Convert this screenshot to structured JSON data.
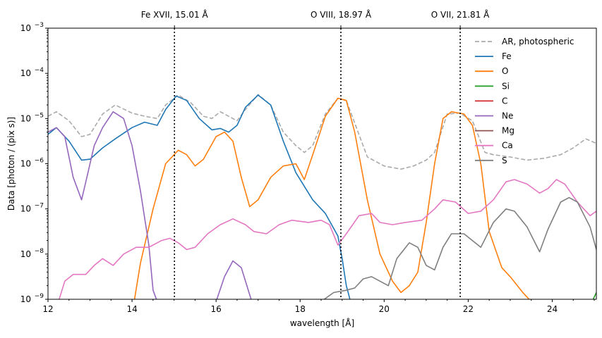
{
  "chart_data": {
    "type": "line",
    "xlabel": "wavelength [Å]",
    "ylabel": "Data [photon / (pix s)]",
    "xlim": [
      12,
      25.05
    ],
    "ylim_log10": [
      -9,
      -3
    ],
    "y_scale": "log",
    "x_ticks": [
      12,
      14,
      16,
      18,
      20,
      22,
      24
    ],
    "y_ticks": [
      {
        "exp": -9,
        "label": "10",
        "sup": "−9"
      },
      {
        "exp": -8,
        "label": "10",
        "sup": "−8"
      },
      {
        "exp": -7,
        "label": "10",
        "sup": "−7"
      },
      {
        "exp": -6,
        "label": "10",
        "sup": "−6"
      },
      {
        "exp": -5,
        "label": "10",
        "sup": "−5"
      },
      {
        "exp": -4,
        "label": "10",
        "sup": "−4"
      },
      {
        "exp": -3,
        "label": "10",
        "sup": "−3"
      }
    ],
    "reference_lines": [
      {
        "x": 15.01,
        "label": "Fe XVII, 15.01 Å"
      },
      {
        "x": 18.97,
        "label": "O VIII, 18.97 Å"
      },
      {
        "x": 21.81,
        "label": "O VII, 21.81 Å"
      }
    ],
    "legend_position": "upper-right",
    "series": [
      {
        "name": "AR, photospheric",
        "color": "#aaaaaa",
        "dash": true,
        "points": [
          [
            12,
            -4.95
          ],
          [
            12.2,
            -4.85
          ],
          [
            12.5,
            -5.05
          ],
          [
            12.8,
            -5.4
          ],
          [
            13,
            -5.35
          ],
          [
            13.3,
            -4.9
          ],
          [
            13.6,
            -4.7
          ],
          [
            14,
            -4.88
          ],
          [
            14.3,
            -4.95
          ],
          [
            14.6,
            -5.0
          ],
          [
            14.8,
            -4.7
          ],
          [
            15.1,
            -4.48
          ],
          [
            15.4,
            -4.65
          ],
          [
            15.7,
            -4.95
          ],
          [
            15.9,
            -5.0
          ],
          [
            16.1,
            -4.85
          ],
          [
            16.3,
            -4.95
          ],
          [
            16.5,
            -5.05
          ],
          [
            16.7,
            -4.8
          ],
          [
            17.0,
            -4.47
          ],
          [
            17.3,
            -4.7
          ],
          [
            17.6,
            -5.3
          ],
          [
            17.9,
            -5.6
          ],
          [
            18.1,
            -5.75
          ],
          [
            18.3,
            -5.6
          ],
          [
            18.6,
            -4.9
          ],
          [
            18.9,
            -4.55
          ],
          [
            19.1,
            -4.6
          ],
          [
            19.3,
            -5.1
          ],
          [
            19.6,
            -5.85
          ],
          [
            20.0,
            -6.05
          ],
          [
            20.4,
            -6.12
          ],
          [
            20.7,
            -6.05
          ],
          [
            21.0,
            -5.92
          ],
          [
            21.2,
            -5.75
          ],
          [
            21.5,
            -4.9
          ],
          [
            21.8,
            -4.88
          ],
          [
            22.1,
            -5.05
          ],
          [
            22.4,
            -5.75
          ],
          [
            22.6,
            -5.8
          ],
          [
            23.0,
            -5.85
          ],
          [
            23.4,
            -5.92
          ],
          [
            23.8,
            -5.88
          ],
          [
            24.2,
            -5.8
          ],
          [
            24.5,
            -5.65
          ],
          [
            24.8,
            -5.45
          ],
          [
            25.05,
            -5.55
          ]
        ]
      },
      {
        "name": "Fe",
        "color": "#1f77b4",
        "dash": false,
        "points": [
          [
            12,
            -5.35
          ],
          [
            12.2,
            -5.2
          ],
          [
            12.5,
            -5.5
          ],
          [
            12.8,
            -5.92
          ],
          [
            13.0,
            -5.9
          ],
          [
            13.3,
            -5.65
          ],
          [
            13.6,
            -5.45
          ],
          [
            14.0,
            -5.2
          ],
          [
            14.3,
            -5.08
          ],
          [
            14.6,
            -5.15
          ],
          [
            14.8,
            -4.8
          ],
          [
            15.05,
            -4.5
          ],
          [
            15.3,
            -4.6
          ],
          [
            15.6,
            -5.0
          ],
          [
            15.9,
            -5.25
          ],
          [
            16.1,
            -5.22
          ],
          [
            16.3,
            -5.3
          ],
          [
            16.5,
            -5.15
          ],
          [
            16.7,
            -4.75
          ],
          [
            17.0,
            -4.48
          ],
          [
            17.3,
            -4.7
          ],
          [
            17.6,
            -5.5
          ],
          [
            17.9,
            -6.2
          ],
          [
            18.1,
            -6.5
          ],
          [
            18.3,
            -6.8
          ],
          [
            18.6,
            -7.1
          ],
          [
            18.9,
            -7.6
          ],
          [
            19.0,
            -8.1
          ],
          [
            19.1,
            -8.7
          ],
          [
            19.2,
            -9.05
          ]
        ]
      },
      {
        "name": "O",
        "color": "#ff7f0e",
        "dash": false,
        "points": [
          [
            14.05,
            -9.05
          ],
          [
            14.2,
            -8.2
          ],
          [
            14.5,
            -7.0
          ],
          [
            14.8,
            -6.0
          ],
          [
            15.1,
            -5.7
          ],
          [
            15.3,
            -5.8
          ],
          [
            15.5,
            -6.05
          ],
          [
            15.7,
            -5.9
          ],
          [
            16.0,
            -5.4
          ],
          [
            16.2,
            -5.3
          ],
          [
            16.4,
            -5.5
          ],
          [
            16.6,
            -6.3
          ],
          [
            16.8,
            -6.95
          ],
          [
            17.0,
            -6.8
          ],
          [
            17.3,
            -6.3
          ],
          [
            17.6,
            -6.05
          ],
          [
            17.9,
            -6.0
          ],
          [
            18.1,
            -6.35
          ],
          [
            18.3,
            -5.8
          ],
          [
            18.6,
            -4.95
          ],
          [
            18.9,
            -4.55
          ],
          [
            19.1,
            -4.6
          ],
          [
            19.3,
            -5.3
          ],
          [
            19.6,
            -6.8
          ],
          [
            19.9,
            -8.0
          ],
          [
            20.2,
            -8.6
          ],
          [
            20.4,
            -8.85
          ],
          [
            20.6,
            -8.7
          ],
          [
            20.8,
            -8.4
          ],
          [
            21.0,
            -7.3
          ],
          [
            21.2,
            -6.0
          ],
          [
            21.4,
            -5.0
          ],
          [
            21.6,
            -4.85
          ],
          [
            21.9,
            -4.9
          ],
          [
            22.1,
            -5.15
          ],
          [
            22.3,
            -6.0
          ],
          [
            22.5,
            -7.5
          ],
          [
            22.8,
            -8.3
          ],
          [
            23.0,
            -8.5
          ],
          [
            23.3,
            -8.85
          ],
          [
            23.5,
            -9.05
          ]
        ]
      },
      {
        "name": "Si",
        "color": "#2ca02c",
        "dash": false,
        "points": [
          [
            24.95,
            -9.05
          ],
          [
            25.0,
            -8.95
          ],
          [
            25.05,
            -8.85
          ]
        ]
      },
      {
        "name": "C",
        "color": "#d62728",
        "dash": false,
        "points": []
      },
      {
        "name": "Ne",
        "color": "#9467bd",
        "dash": false,
        "points": [
          [
            12,
            -5.3
          ],
          [
            12.2,
            -5.2
          ],
          [
            12.4,
            -5.4
          ],
          [
            12.6,
            -6.3
          ],
          [
            12.8,
            -6.8
          ],
          [
            12.9,
            -6.4
          ],
          [
            13.1,
            -5.6
          ],
          [
            13.3,
            -5.2
          ],
          [
            13.55,
            -4.85
          ],
          [
            13.8,
            -5.0
          ],
          [
            14.0,
            -5.6
          ],
          [
            14.2,
            -6.6
          ],
          [
            14.4,
            -7.8
          ],
          [
            14.5,
            -8.8
          ],
          [
            14.6,
            -9.05
          ]
        ],
        "points2": [
          [
            16.0,
            -9.05
          ],
          [
            16.2,
            -8.5
          ],
          [
            16.4,
            -8.15
          ],
          [
            16.6,
            -8.3
          ],
          [
            16.8,
            -8.9
          ],
          [
            16.85,
            -9.05
          ]
        ]
      },
      {
        "name": "Mg",
        "color": "#8c564b",
        "dash": false,
        "points": []
      },
      {
        "name": "Ca",
        "color": "#e377c2",
        "dash": false,
        "points": [
          [
            12.25,
            -9.05
          ],
          [
            12.4,
            -8.6
          ],
          [
            12.6,
            -8.45
          ],
          [
            12.9,
            -8.45
          ],
          [
            13.1,
            -8.25
          ],
          [
            13.3,
            -8.1
          ],
          [
            13.55,
            -8.25
          ],
          [
            13.8,
            -8.0
          ],
          [
            14.1,
            -7.85
          ],
          [
            14.4,
            -7.85
          ],
          [
            14.7,
            -7.7
          ],
          [
            14.9,
            -7.65
          ],
          [
            15.1,
            -7.75
          ],
          [
            15.3,
            -7.9
          ],
          [
            15.5,
            -7.85
          ],
          [
            15.8,
            -7.55
          ],
          [
            16.1,
            -7.35
          ],
          [
            16.4,
            -7.22
          ],
          [
            16.7,
            -7.35
          ],
          [
            16.9,
            -7.5
          ],
          [
            17.2,
            -7.55
          ],
          [
            17.5,
            -7.35
          ],
          [
            17.8,
            -7.25
          ],
          [
            18.2,
            -7.3
          ],
          [
            18.5,
            -7.25
          ],
          [
            18.7,
            -7.35
          ],
          [
            18.9,
            -7.8
          ],
          [
            19.1,
            -7.55
          ],
          [
            19.4,
            -7.15
          ],
          [
            19.7,
            -7.1
          ],
          [
            19.9,
            -7.3
          ],
          [
            20.2,
            -7.35
          ],
          [
            20.5,
            -7.3
          ],
          [
            20.9,
            -7.25
          ],
          [
            21.2,
            -7.0
          ],
          [
            21.4,
            -6.8
          ],
          [
            21.7,
            -6.85
          ],
          [
            22.0,
            -7.1
          ],
          [
            22.3,
            -7.05
          ],
          [
            22.6,
            -6.8
          ],
          [
            22.9,
            -6.4
          ],
          [
            23.1,
            -6.35
          ],
          [
            23.4,
            -6.45
          ],
          [
            23.7,
            -6.65
          ],
          [
            23.9,
            -6.55
          ],
          [
            24.1,
            -6.35
          ],
          [
            24.3,
            -6.45
          ],
          [
            24.6,
            -6.85
          ],
          [
            24.9,
            -7.15
          ],
          [
            25.05,
            -7.05
          ]
        ]
      },
      {
        "name": "S",
        "color": "#7f7f7f",
        "dash": false,
        "points": [
          [
            18.5,
            -9.05
          ],
          [
            18.8,
            -8.85
          ],
          [
            19.1,
            -8.8
          ],
          [
            19.3,
            -8.75
          ],
          [
            19.5,
            -8.55
          ],
          [
            19.7,
            -8.5
          ],
          [
            19.9,
            -8.6
          ],
          [
            20.1,
            -8.7
          ],
          [
            20.3,
            -8.1
          ],
          [
            20.6,
            -7.75
          ],
          [
            20.8,
            -7.85
          ],
          [
            21.0,
            -8.25
          ],
          [
            21.2,
            -8.35
          ],
          [
            21.4,
            -7.85
          ],
          [
            21.6,
            -7.55
          ],
          [
            21.9,
            -7.55
          ],
          [
            22.1,
            -7.7
          ],
          [
            22.3,
            -7.85
          ],
          [
            22.6,
            -7.3
          ],
          [
            22.9,
            -7.0
          ],
          [
            23.1,
            -7.05
          ],
          [
            23.4,
            -7.4
          ],
          [
            23.7,
            -7.95
          ],
          [
            23.9,
            -7.45
          ],
          [
            24.2,
            -6.85
          ],
          [
            24.4,
            -6.75
          ],
          [
            24.6,
            -6.85
          ],
          [
            24.9,
            -7.4
          ],
          [
            25.05,
            -7.9
          ]
        ]
      }
    ]
  }
}
